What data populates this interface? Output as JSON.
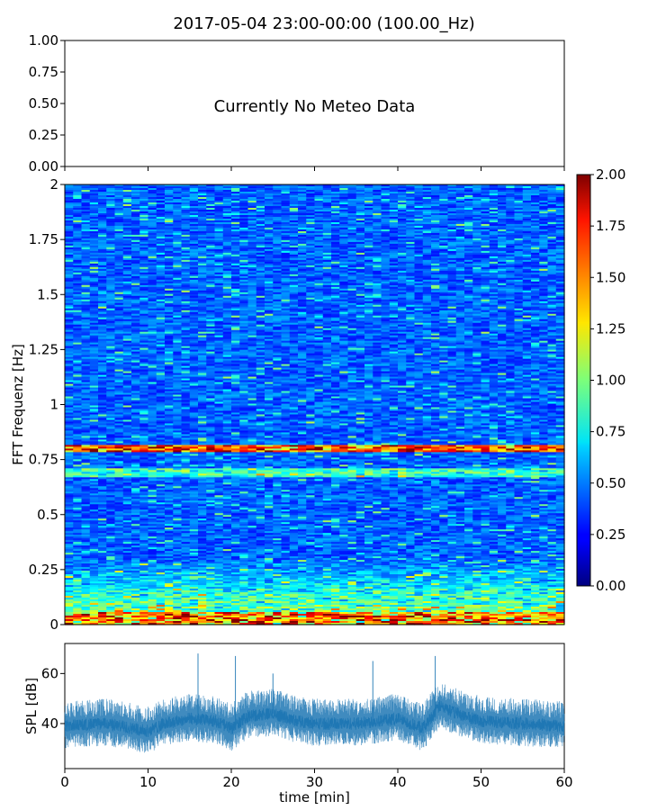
{
  "title": "2017-05-04 23:00-00:00 (100.00_Hz)",
  "colors": {
    "spl_line": "#1f77b4",
    "axis": "#000000"
  },
  "chart_data": [
    {
      "id": "meteo",
      "type": "line",
      "message": "Currently No Meteo Data",
      "ylim": [
        0,
        1
      ],
      "yticks": [
        "0.00",
        "0.25",
        "0.50",
        "0.75",
        "1.00"
      ],
      "xlim": [
        0,
        60
      ]
    },
    {
      "id": "spectrogram",
      "type": "heatmap",
      "ylabel": "FFT Frequenz [Hz]",
      "xlim": [
        0,
        60
      ],
      "ylim": [
        0,
        2
      ],
      "yticks": [
        "0",
        "0.25",
        "0.5",
        "0.75",
        "1",
        "1.25",
        "1.5",
        "1.75",
        "2"
      ],
      "colormap": "jet",
      "features": {
        "strong_band_hz": 0.8,
        "secondary_band_hz": 0.69,
        "low_freq_energy_below_hz": 0.3
      },
      "colorbar": {
        "range": [
          0,
          2
        ],
        "ticks": [
          "0.00",
          "0.25",
          "0.50",
          "0.75",
          "1.00",
          "1.25",
          "1.50",
          "1.75",
          "2.00"
        ]
      }
    },
    {
      "id": "spl",
      "type": "line",
      "xlabel": "time [min]",
      "ylabel": "SPL [dB]",
      "xlim": [
        0,
        60
      ],
      "ylim": [
        22,
        72
      ],
      "xticks": [
        "0",
        "10",
        "20",
        "30",
        "40",
        "50",
        "60"
      ],
      "yticks": [
        "40",
        "60"
      ],
      "trend": {
        "x": [
          0,
          5,
          10,
          12,
          15,
          18,
          20,
          22,
          25,
          28,
          30,
          35,
          40,
          43,
          45,
          48,
          50,
          55,
          60
        ],
        "y": [
          39,
          40,
          37,
          40,
          42,
          41,
          38,
          43,
          44,
          41,
          40,
          40,
          42,
          38,
          47,
          43,
          41,
          40,
          39
        ]
      },
      "spikes": [
        {
          "x": 16,
          "y": 68
        },
        {
          "x": 20.5,
          "y": 67
        },
        {
          "x": 37,
          "y": 65
        },
        {
          "x": 44.5,
          "y": 67
        },
        {
          "x": 25,
          "y": 60
        }
      ]
    }
  ]
}
